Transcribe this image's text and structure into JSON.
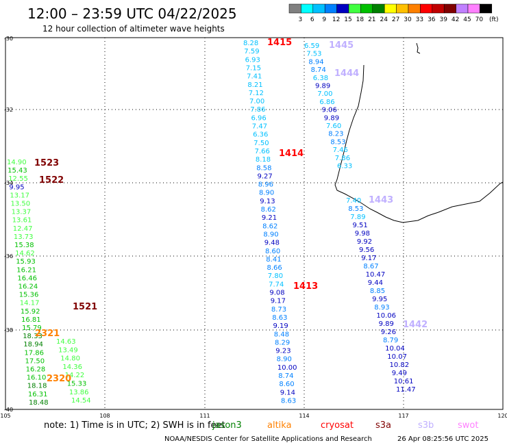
{
  "header": {
    "title": "12:00 – 23:59 UTC 04/22/2025",
    "subtitle": "12 hour collection of altimeter wave heights"
  },
  "legend": {
    "unit": "(ft)",
    "swatches": [
      {
        "label": "",
        "color": "#808080"
      },
      {
        "label": "3",
        "color": "#00ffff"
      },
      {
        "label": "6",
        "color": "#00c0ff"
      },
      {
        "label": "9",
        "color": "#0080ff"
      },
      {
        "label": "12",
        "color": "#0000c0"
      },
      {
        "label": "15",
        "color": "#40ff40"
      },
      {
        "label": "18",
        "color": "#00c000"
      },
      {
        "label": "21",
        "color": "#008000"
      },
      {
        "label": "24",
        "color": "#ffff00"
      },
      {
        "label": "27",
        "color": "#ffc000"
      },
      {
        "label": "30",
        "color": "#ff8000"
      },
      {
        "label": "33",
        "color": "#ff0000"
      },
      {
        "label": "36",
        "color": "#c00000"
      },
      {
        "label": "39",
        "color": "#800000"
      },
      {
        "label": "42",
        "color": "#c080ff"
      },
      {
        "label": "45",
        "color": "#ff80ff"
      },
      {
        "label": "70",
        "color": "#000000"
      }
    ]
  },
  "axes": {
    "lat_labels": [
      "-30",
      "-32",
      "-34",
      "-36",
      "-38",
      "-40"
    ],
    "lon_labels": [
      "105",
      "108",
      "111",
      "114",
      "117",
      "120"
    ]
  },
  "tracks": [
    {
      "label": "1415",
      "label_color": "#ff0000",
      "x": [
        378,
        378,
        375,
        373,
        373,
        373,
        375,
        376,
        377,
        378,
        380,
        381,
        383,
        385,
        387,
        390,
        392,
        393,
        394,
        395,
        396,
        398,
        398,
        400,
        402,
        403,
        404,
        406,
        408,
        409,
        409,
        410,
        412,
        413,
        414,
        416,
        417,
        418,
        420,
        421,
        422
      ],
      "values": [
        "8.28",
        "7.59",
        "6.93",
        "7.15",
        "7.41",
        "8.21",
        "7.12",
        "7.00",
        "7.86",
        "6.96",
        "7.47",
        "6.36",
        "7.50",
        "7.66",
        "8.18",
        "8.58",
        "9.27",
        "8.96",
        "8.90",
        "9.13",
        "8.62",
        "9.21",
        "8.62",
        "8.90",
        "9.48",
        "8.60",
        "8.41",
        "8.66",
        "7.80",
        "7.74",
        "9.08",
        "9.17",
        "8.73",
        "8.63",
        "9.19",
        "8.48",
        "8.29",
        "9.23",
        "8.90",
        "10.00",
        "8.74"
      ]
    },
    {
      "label": "1445",
      "label_color": "#c0b0ff"
    },
    {
      "label": "1444",
      "label_color": "#c0b0ff"
    },
    {
      "label": "1414",
      "label_color": "#ff0000"
    },
    {
      "label": "1443",
      "label_color": "#c0b0ff"
    },
    {
      "label": "1413",
      "label_color": "#ff0000"
    },
    {
      "label": "1442",
      "label_color": "#c0b0ff"
    },
    {
      "label": "1523",
      "label_color": "#800000"
    },
    {
      "label": "1522",
      "label_color": "#800000"
    },
    {
      "label": "1521",
      "label_color": "#800000"
    },
    {
      "label": "2321",
      "label_color": "#ff8000"
    },
    {
      "label": "2320",
      "label_color": "#ff8000"
    }
  ],
  "readings": {
    "track_a": [
      "8.28",
      "7.59",
      "6.93",
      "7.15",
      "7.41",
      "8.21",
      "7.12",
      "7.00",
      "7.86",
      "6.96",
      "7.47",
      "6.36",
      "7.50",
      "7.66",
      "8.18",
      "8.58",
      "9.27",
      "8.96",
      "8.90",
      "9.13",
      "8.62",
      "9.21",
      "8.62",
      "8.90",
      "9.48",
      "8.60",
      "8.41",
      "8.66",
      "7.80",
      "7.74",
      "9.08",
      "9.17",
      "8.73",
      "8.63",
      "9.19",
      "8.48",
      "8.29",
      "9.23",
      "8.90",
      "10.00",
      "8.74",
      "8.60",
      "9.14",
      "8.63"
    ],
    "track_a_colors": [
      "#00c0ff",
      "#00c0ff",
      "#00c0ff",
      "#00c0ff",
      "#00c0ff",
      "#00c0ff",
      "#00c0ff",
      "#00c0ff",
      "#00c0ff",
      "#00c0ff",
      "#00c0ff",
      "#00c0ff",
      "#00c0ff",
      "#00c0ff",
      "#00c0ff",
      "#0080ff",
      "#0000c0",
      "#0080ff",
      "#0080ff",
      "#0000c0",
      "#0080ff",
      "#0000c0",
      "#0080ff",
      "#0080ff",
      "#0000c0",
      "#0080ff",
      "#0080ff",
      "#0080ff",
      "#00c0ff",
      "#00c0ff",
      "#0000c0",
      "#0000c0",
      "#0080ff",
      "#0080ff",
      "#0000c0",
      "#0080ff",
      "#0080ff",
      "#0000c0",
      "#0080ff",
      "#0000c0",
      "#0080ff",
      "#0080ff",
      "#0000c0",
      "#0080ff"
    ],
    "track_b": [
      "6.59",
      "7.53",
      "8.94",
      "8.74",
      "6.38",
      "9.89",
      "7.00",
      "6.86",
      "9.06",
      "9.89",
      "7.60",
      "8.23",
      "8.53",
      "7.46",
      "7.86",
      "6.33"
    ],
    "track_b_colors": [
      "#00c0ff",
      "#00c0ff",
      "#0080ff",
      "#0080ff",
      "#00c0ff",
      "#0000c0",
      "#00c0ff",
      "#00c0ff",
      "#0000c0",
      "#0000c0",
      "#00c0ff",
      "#0080ff",
      "#0080ff",
      "#00c0ff",
      "#00c0ff",
      "#00c0ff"
    ],
    "track_c": [
      "7.40",
      "8.53",
      "7.89",
      "9.51",
      "9.98",
      "9.92",
      "9.56",
      "9.17",
      "8.67",
      "10.47",
      "9.44",
      "8.85",
      "9.95",
      "8.93",
      "10.06",
      "9.89",
      "9.26",
      "8.79",
      "10.04",
      "10.07",
      "10.82",
      "9.49",
      "10.61",
      "11.47"
    ],
    "track_c_colors": [
      "#00c0ff",
      "#0080ff",
      "#00c0ff",
      "#0000c0",
      "#0000c0",
      "#0000c0",
      "#0000c0",
      "#0000c0",
      "#0080ff",
      "#0000c0",
      "#0000c0",
      "#0080ff",
      "#0000c0",
      "#0080ff",
      "#0000c0",
      "#0000c0",
      "#0000c0",
      "#0080ff",
      "#0000c0",
      "#0000c0",
      "#0000c0",
      "#0000c0",
      "#0000c0",
      "#0000c0"
    ],
    "track_d": [
      "14.90",
      "15.43",
      "12.55",
      "9.95",
      "13.17",
      "13.50",
      "13.37",
      "13.61",
      "12.47",
      "13.73",
      "15.38",
      "14.62",
      "15.93",
      "16.21",
      "16.46",
      "16.24",
      "15.36",
      "14.17",
      "15.92",
      "16.81",
      "15.79",
      "18.33",
      "18.94",
      "17.86",
      "17.50",
      "16.28",
      "16.10",
      "18.18",
      "16.31",
      "18.48"
    ],
    "track_d_colors": [
      "#40ff40",
      "#00c000",
      "#40ff40",
      "#0000c0",
      "#40ff40",
      "#40ff40",
      "#40ff40",
      "#40ff40",
      "#40ff40",
      "#40ff40",
      "#00c000",
      "#40ff40",
      "#00c000",
      "#00c000",
      "#00c000",
      "#00c000",
      "#00c000",
      "#40ff40",
      "#00c000",
      "#00c000",
      "#00c000",
      "#008000",
      "#008000",
      "#00c000",
      "#00c000",
      "#00c000",
      "#00c000",
      "#008000",
      "#00c000",
      "#008000"
    ],
    "track_e": [
      "14.63",
      "13.49",
      "14.80",
      "14.36",
      "14.22",
      "15.33",
      "13.86",
      "14.54"
    ],
    "track_e_colors": [
      "#40ff40",
      "#40ff40",
      "#40ff40",
      "#40ff40",
      "#40ff40",
      "#00c000",
      "#40ff40",
      "#40ff40"
    ]
  },
  "footer": {
    "note": "note:  1) Time is in UTC;  2) SWH is in feet",
    "satellites": [
      {
        "name": "jason3",
        "color": "#008000"
      },
      {
        "name": "altika",
        "color": "#ff8000"
      },
      {
        "name": "cryosat",
        "color": "#ff0000"
      },
      {
        "name": "s3a",
        "color": "#800000"
      },
      {
        "name": "s3b",
        "color": "#c0b0ff"
      },
      {
        "name": "swot",
        "color": "#ff80ff"
      }
    ],
    "credit": "NOAA/NESDIS Center for Satellite Applications and Research",
    "timestamp": "26 Apr 08:25:56 UTC 2025"
  }
}
